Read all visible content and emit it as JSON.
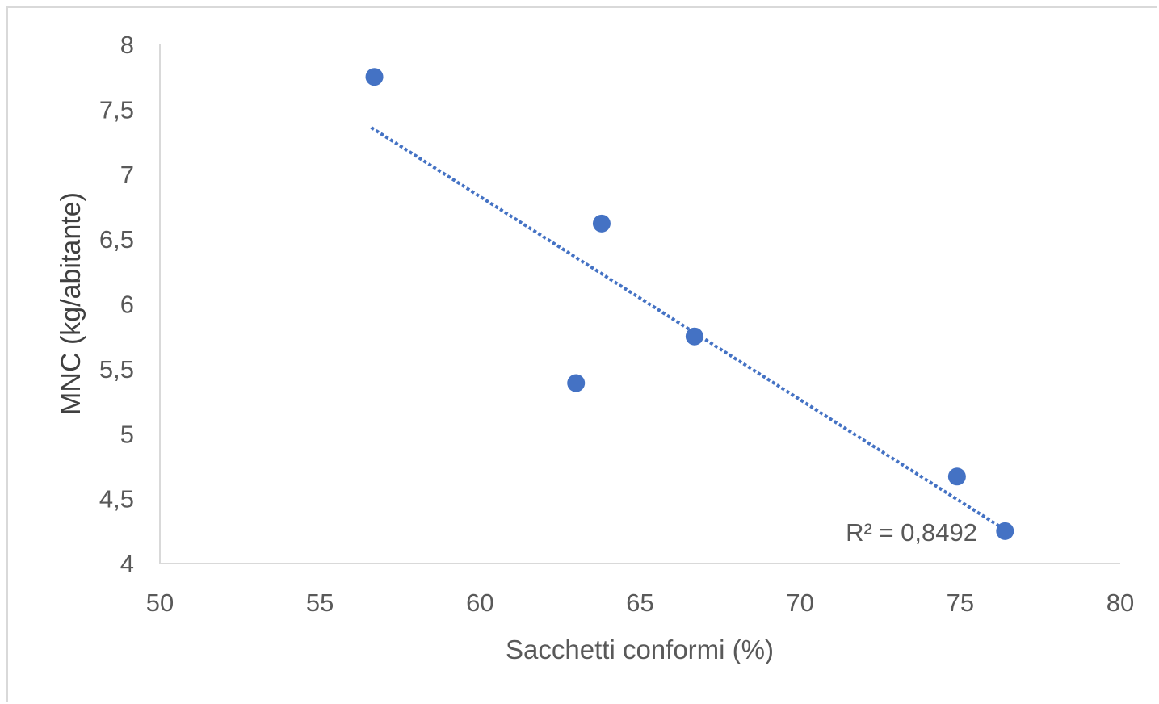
{
  "chart_data": {
    "type": "scatter",
    "title": "",
    "xlabel": "Sacchetti conformi (%)",
    "ylabel": "MNC (kg/abitante)",
    "xlim": [
      50,
      80
    ],
    "ylim": [
      4,
      8
    ],
    "x_ticks": [
      50,
      55,
      60,
      65,
      70,
      75,
      80
    ],
    "y_ticks": [
      4,
      4.5,
      5,
      5.5,
      6,
      6.5,
      7,
      7.5,
      8
    ],
    "x_tick_labels": [
      "50",
      "55",
      "60",
      "65",
      "70",
      "75",
      "80"
    ],
    "y_tick_labels": [
      "4",
      "4,5",
      "5",
      "5,5",
      "6",
      "6,5",
      "7",
      "7,5",
      "8"
    ],
    "grid": false,
    "legend": "none",
    "series": [
      {
        "color": "#4472c4",
        "points": [
          {
            "x": 56.7,
            "y": 7.75
          },
          {
            "x": 63.0,
            "y": 5.39
          },
          {
            "x": 63.8,
            "y": 6.62
          },
          {
            "x": 66.7,
            "y": 5.75
          },
          {
            "x": 74.9,
            "y": 4.67
          },
          {
            "x": 76.4,
            "y": 4.25
          }
        ]
      }
    ],
    "trendline": {
      "type": "linear",
      "style": "dotted",
      "color": "#4472c4",
      "x_start": 56.6,
      "y_start": 7.36,
      "x_end": 76.4,
      "y_end": 4.26
    },
    "annotations": [
      {
        "text": "R² = 0,8492"
      }
    ],
    "axis_color": "#d9d9d9"
  }
}
